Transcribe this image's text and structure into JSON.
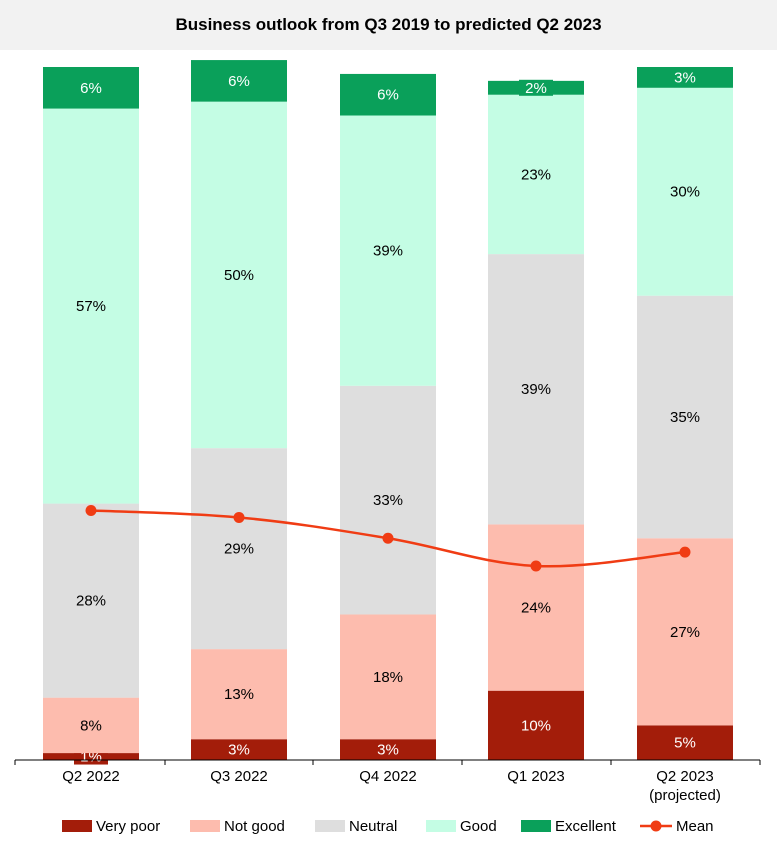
{
  "chart_data": {
    "type": "bar",
    "stacked": true,
    "title": "Business outlook from Q3 2019 to predicted Q2 2023",
    "categories": [
      "Q2 2022",
      "Q3 2022",
      "Q4 2022",
      "Q1 2023",
      "Q2 2023"
    ],
    "category_sublabels": [
      "",
      "",
      "",
      "",
      "(projected)"
    ],
    "series": [
      {
        "name": "Very poor",
        "color": "#a31d0a",
        "text_color": "#ffffff",
        "values": [
          1,
          3,
          3,
          10,
          5
        ],
        "labels": [
          "1%",
          "3%",
          "3%",
          "10%",
          "5%"
        ]
      },
      {
        "name": "Not good",
        "color": "#fdbcae",
        "text_color": "#000000",
        "values": [
          8,
          13,
          18,
          24,
          27
        ],
        "labels": [
          "8%",
          "13%",
          "18%",
          "24%",
          "27%"
        ]
      },
      {
        "name": "Neutral",
        "color": "#dedede",
        "text_color": "#000000",
        "values": [
          28,
          29,
          33,
          39,
          35
        ],
        "labels": [
          "28%",
          "29%",
          "33%",
          "39%",
          "35%"
        ]
      },
      {
        "name": "Good",
        "color": "#c4fde4",
        "text_color": "#000000",
        "values": [
          57,
          50,
          39,
          23,
          30
        ],
        "labels": [
          "57%",
          "50%",
          "39%",
          "23%",
          "30%"
        ]
      },
      {
        "name": "Excellent",
        "color": "#0aa05a",
        "text_color": "#ffffff",
        "values": [
          6,
          6,
          6,
          2,
          3
        ],
        "labels": [
          "6%",
          "6%",
          "6%",
          "2%",
          "3%"
        ]
      }
    ],
    "mean": {
      "name": "Mean",
      "color": "#f03c14",
      "values": [
        36,
        35,
        32,
        28,
        30
      ]
    },
    "ylim": [
      0,
      100
    ],
    "grid": false,
    "legend_position": "bottom"
  }
}
